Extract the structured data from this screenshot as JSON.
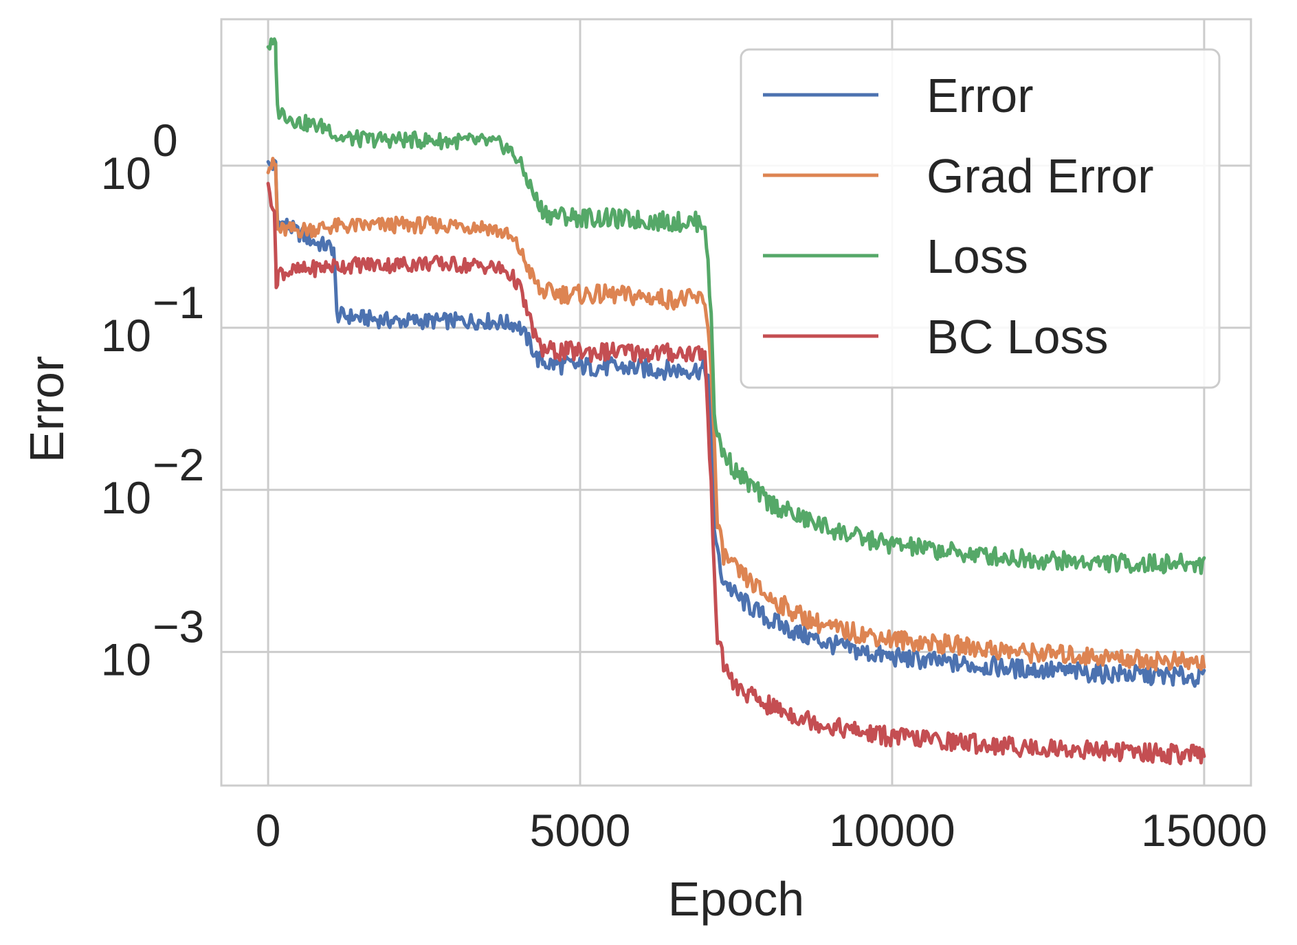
{
  "chart_data": {
    "type": "line",
    "title": "",
    "xlabel": "Epoch",
    "ylabel": "Error",
    "yscale": "log",
    "xlim": [
      -750,
      15750
    ],
    "ylim": [
      0.00015,
      8.0
    ],
    "grid": true,
    "legend_position": "top-right",
    "x_ticks": [
      {
        "value": 0,
        "label": "0"
      },
      {
        "value": 5000,
        "label": "5000"
      },
      {
        "value": 10000,
        "label": "10000"
      },
      {
        "value": 15000,
        "label": "15000"
      }
    ],
    "y_ticks": [
      {
        "value": 1,
        "base": "10",
        "exp": "0"
      },
      {
        "value": 0.1,
        "base": "10",
        "exp": "−1"
      },
      {
        "value": 0.01,
        "base": "10",
        "exp": "−2"
      },
      {
        "value": 0.001,
        "base": "10",
        "exp": "−3"
      }
    ],
    "series": [
      {
        "name": "Error",
        "color": "#4c72b0",
        "points": [
          [
            0,
            1.0
          ],
          [
            120,
            1.0
          ],
          [
            150,
            0.45
          ],
          [
            300,
            0.43
          ],
          [
            500,
            0.38
          ],
          [
            800,
            0.33
          ],
          [
            1050,
            0.31
          ],
          [
            1100,
            0.12
          ],
          [
            1500,
            0.115
          ],
          [
            2000,
            0.11
          ],
          [
            2500,
            0.11
          ],
          [
            3000,
            0.11
          ],
          [
            3500,
            0.11
          ],
          [
            4000,
            0.105
          ],
          [
            4200,
            0.08
          ],
          [
            4300,
            0.065
          ],
          [
            4500,
            0.06
          ],
          [
            5000,
            0.058
          ],
          [
            5500,
            0.057
          ],
          [
            6000,
            0.056
          ],
          [
            6500,
            0.055
          ],
          [
            7000,
            0.055
          ],
          [
            7050,
            0.05
          ],
          [
            7150,
            0.006
          ],
          [
            7250,
            0.003
          ],
          [
            7500,
            0.0022
          ],
          [
            8000,
            0.0016
          ],
          [
            8500,
            0.0013
          ],
          [
            9000,
            0.00112
          ],
          [
            9500,
            0.001
          ],
          [
            10000,
            0.00093
          ],
          [
            11000,
            0.00085
          ],
          [
            12000,
            0.00079
          ],
          [
            13000,
            0.00075
          ],
          [
            14000,
            0.00072
          ],
          [
            15000,
            0.0007
          ]
        ]
      },
      {
        "name": "Grad Error",
        "color": "#dd8452",
        "points": [
          [
            0,
            1.0
          ],
          [
            120,
            1.0
          ],
          [
            150,
            0.4
          ],
          [
            500,
            0.4
          ],
          [
            1000,
            0.42
          ],
          [
            2000,
            0.43
          ],
          [
            3000,
            0.43
          ],
          [
            3500,
            0.42
          ],
          [
            3800,
            0.38
          ],
          [
            4000,
            0.32
          ],
          [
            4200,
            0.22
          ],
          [
            4350,
            0.17
          ],
          [
            4500,
            0.165
          ],
          [
            5000,
            0.16
          ],
          [
            5500,
            0.16
          ],
          [
            6000,
            0.155
          ],
          [
            6500,
            0.15
          ],
          [
            7000,
            0.15
          ],
          [
            7100,
            0.06
          ],
          [
            7200,
            0.006
          ],
          [
            7300,
            0.004
          ],
          [
            7500,
            0.0032
          ],
          [
            8000,
            0.0022
          ],
          [
            8500,
            0.0017
          ],
          [
            9000,
            0.0014
          ],
          [
            9500,
            0.0013
          ],
          [
            10000,
            0.0012
          ],
          [
            11000,
            0.0011
          ],
          [
            12000,
            0.001
          ],
          [
            13000,
            0.00095
          ],
          [
            14000,
            0.0009
          ],
          [
            15000,
            0.00085
          ]
        ]
      },
      {
        "name": "Loss",
        "color": "#55a868",
        "points": [
          [
            0,
            5.5
          ],
          [
            120,
            5.5
          ],
          [
            150,
            2.2
          ],
          [
            500,
            1.85
          ],
          [
            1000,
            1.7
          ],
          [
            1100,
            1.5
          ],
          [
            1500,
            1.45
          ],
          [
            2000,
            1.45
          ],
          [
            2500,
            1.43
          ],
          [
            3000,
            1.42
          ],
          [
            3500,
            1.4
          ],
          [
            3800,
            1.32
          ],
          [
            4000,
            1.1
          ],
          [
            4200,
            0.75
          ],
          [
            4350,
            0.55
          ],
          [
            4500,
            0.5
          ],
          [
            5000,
            0.48
          ],
          [
            5500,
            0.47
          ],
          [
            6000,
            0.46
          ],
          [
            6500,
            0.45
          ],
          [
            7000,
            0.45
          ],
          [
            7100,
            0.12
          ],
          [
            7150,
            0.03
          ],
          [
            7250,
            0.018
          ],
          [
            7500,
            0.013
          ],
          [
            8000,
            0.0085
          ],
          [
            8500,
            0.0068
          ],
          [
            9000,
            0.0058
          ],
          [
            9500,
            0.005
          ],
          [
            10000,
            0.0046
          ],
          [
            11000,
            0.0041
          ],
          [
            12000,
            0.0038
          ],
          [
            13000,
            0.0036
          ],
          [
            14000,
            0.0035
          ],
          [
            15000,
            0.0035
          ]
        ]
      },
      {
        "name": "BC Loss",
        "color": "#c44e52",
        "points": [
          [
            0,
            0.72
          ],
          [
            100,
            0.55
          ],
          [
            130,
            0.18
          ],
          [
            160,
            0.22
          ],
          [
            500,
            0.225
          ],
          [
            1000,
            0.24
          ],
          [
            1500,
            0.245
          ],
          [
            2000,
            0.245
          ],
          [
            2500,
            0.25
          ],
          [
            3000,
            0.245
          ],
          [
            3500,
            0.24
          ],
          [
            3800,
            0.225
          ],
          [
            4000,
            0.19
          ],
          [
            4200,
            0.11
          ],
          [
            4350,
            0.075
          ],
          [
            4500,
            0.072
          ],
          [
            5000,
            0.071
          ],
          [
            5500,
            0.071
          ],
          [
            6000,
            0.07
          ],
          [
            6500,
            0.07
          ],
          [
            7000,
            0.07
          ],
          [
            7100,
            0.01
          ],
          [
            7200,
            0.0012
          ],
          [
            7300,
            0.00085
          ],
          [
            7500,
            0.0006
          ],
          [
            8000,
            0.00047
          ],
          [
            8500,
            0.0004
          ],
          [
            9000,
            0.00035
          ],
          [
            9500,
            0.00032
          ],
          [
            10000,
            0.0003
          ],
          [
            11000,
            0.00028
          ],
          [
            12000,
            0.00026
          ],
          [
            13000,
            0.00025
          ],
          [
            14000,
            0.00024
          ],
          [
            15000,
            0.00023
          ]
        ]
      }
    ]
  }
}
